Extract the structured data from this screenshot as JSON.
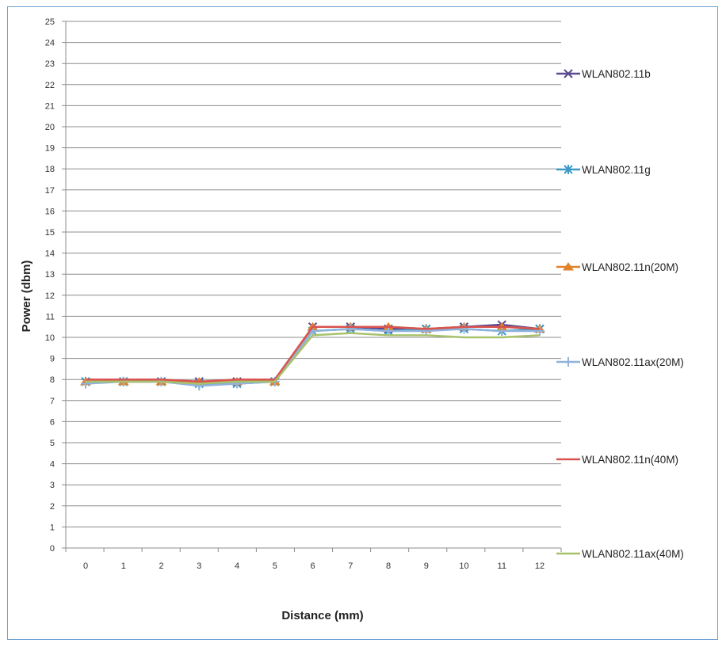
{
  "chart_data": {
    "type": "line",
    "title": "",
    "xlabel": "Distance (mm)",
    "ylabel": "Power (dbm)",
    "categories": [
      "0",
      "1",
      "2",
      "3",
      "4",
      "5",
      "6",
      "7",
      "8",
      "9",
      "10",
      "11",
      "12"
    ],
    "ylim": [
      0,
      25
    ],
    "yticks": [
      "0",
      "1",
      "2",
      "3",
      "4",
      "5",
      "6",
      "7",
      "8",
      "9",
      "10",
      "11",
      "12",
      "13",
      "14",
      "15",
      "16",
      "17",
      "18",
      "19",
      "20",
      "21",
      "22",
      "23",
      "24",
      "25"
    ],
    "grid": true,
    "legend_position": "right",
    "series": [
      {
        "name": "WLAN802.11b",
        "color": "#5a4a8f",
        "marker": "x-cross",
        "values": [
          7.9,
          7.9,
          7.9,
          7.9,
          7.9,
          7.9,
          10.5,
          10.5,
          10.4,
          10.4,
          10.5,
          10.6,
          10.4
        ]
      },
      {
        "name": "WLAN802.11g",
        "color": "#3e9ac4",
        "marker": "star",
        "values": [
          7.9,
          7.9,
          7.9,
          7.8,
          7.8,
          7.9,
          10.3,
          10.4,
          10.3,
          10.4,
          10.4,
          10.3,
          10.4
        ]
      },
      {
        "name": "WLAN802.11n(20M)",
        "color": "#e0822c",
        "marker": "triangle",
        "values": [
          7.9,
          7.9,
          7.9,
          7.9,
          7.9,
          7.9,
          10.5,
          10.5,
          10.5,
          10.4,
          10.5,
          10.5,
          10.4
        ]
      },
      {
        "name": "WLAN802.11ax(20M)",
        "color": "#8fb3dd",
        "marker": "plus",
        "values": [
          7.8,
          7.9,
          7.9,
          7.7,
          7.8,
          7.9,
          10.3,
          10.4,
          10.3,
          10.3,
          10.4,
          10.3,
          10.3
        ]
      },
      {
        "name": "WLAN802.11n(40M)",
        "color": "#d9534f",
        "marker": "none",
        "values": [
          8.0,
          8.0,
          8.0,
          7.9,
          8.0,
          8.0,
          10.5,
          10.5,
          10.5,
          10.4,
          10.5,
          10.5,
          10.4
        ]
      },
      {
        "name": "WLAN802.11ax(40M)",
        "color": "#a8c26c",
        "marker": "none",
        "values": [
          7.9,
          7.9,
          7.9,
          7.8,
          7.9,
          7.9,
          10.1,
          10.2,
          10.1,
          10.1,
          10.0,
          10.0,
          10.1
        ]
      }
    ]
  }
}
